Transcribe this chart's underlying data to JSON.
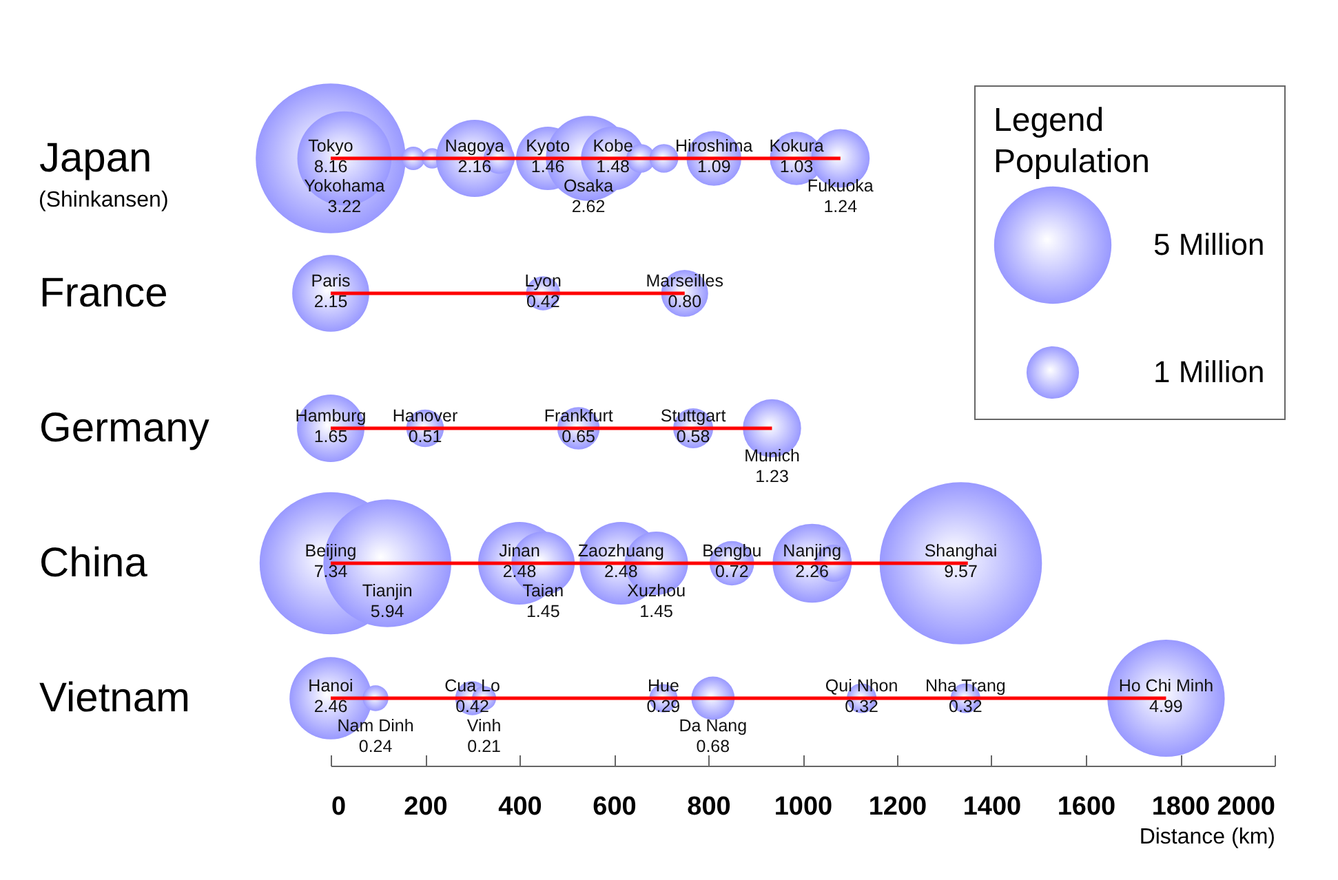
{
  "chart_data": {
    "type": "bubble",
    "orientation": "horizontal",
    "categories": [
      "Japan",
      "France",
      "Germany",
      "China",
      "Vietnam"
    ],
    "xlabel": "Distance (km)",
    "xlim": [
      0,
      2000
    ],
    "xticks": [
      0,
      200,
      400,
      600,
      800,
      1000,
      1200,
      1400,
      1600,
      1800,
      2000
    ],
    "legend_title": "Population",
    "size_legend": [
      {
        "value": 5,
        "label": "5 Million"
      },
      {
        "value": 1,
        "label": "1 Million"
      }
    ],
    "annotations": [
      "(Shinkansen)",
      "Legend"
    ],
    "grid": false,
    "series": [
      {
        "type": "line",
        "color": "#ff0000",
        "x": [
          "Japan",
          "Japan"
        ],
        "values": [
          0,
          1080
        ]
      },
      {
        "type": "line",
        "color": "#ff0000",
        "x": [
          "France",
          "France"
        ],
        "values": [
          0,
          750
        ]
      },
      {
        "type": "line",
        "color": "#ff0000",
        "x": [
          "Germany",
          "Germany"
        ],
        "values": [
          0,
          935
        ]
      },
      {
        "type": "line",
        "color": "#ff0000",
        "x": [
          "China",
          "China"
        ],
        "values": [
          0,
          1350
        ]
      },
      {
        "type": "line",
        "color": "#ff0000",
        "x": [
          "Vietnam",
          "Vietnam"
        ],
        "values": [
          0,
          1770
        ]
      },
      {
        "color": "#9999ff",
        "x": [
          "Japan",
          "Japan",
          "Japan",
          "Japan",
          "Japan",
          "Japan",
          "Japan",
          "Japan",
          "Japan",
          "Japan",
          "Japan",
          "Japan",
          "Japan",
          "Japan"
        ],
        "values": [
          0,
          29,
          175,
          215,
          305,
          357,
          460,
          546,
          598,
          657,
          706,
          812,
          987,
          1080
        ],
        "sizes": [
          8.16,
          3.22,
          0.2,
          0.15,
          2.16,
          0.35,
          1.46,
          2.62,
          1.48,
          0.3,
          0.3,
          1.09,
          1.03,
          1.24
        ],
        "value_labels": [
          "Tokyo\n8.16",
          "Yokohama\n3.22",
          null,
          null,
          "Nagoya\n2.16",
          null,
          "Kyoto\n1.46",
          "Osaka\n2.62",
          "Kobe\n1.48",
          null,
          null,
          "Hiroshima\n1.09",
          "Kokura\n1.03",
          "Fukuoka\n1.24"
        ]
      },
      {
        "color": "#9999ff",
        "x": [
          "France",
          "France",
          "France"
        ],
        "values": [
          0,
          450,
          750
        ],
        "sizes": [
          2.15,
          0.42,
          0.8
        ],
        "value_labels": [
          "Paris\n2.15",
          "Lyon\n0.42",
          "Marseilles\n0.80"
        ]
      },
      {
        "color": "#9999ff",
        "x": [
          "Germany",
          "Germany",
          "Germany",
          "Germany",
          "Germany"
        ],
        "values": [
          0,
          200,
          525,
          768,
          935
        ],
        "sizes": [
          1.65,
          0.51,
          0.65,
          0.58,
          1.23
        ],
        "value_labels": [
          "Hamburg\n1.65",
          "Hanover\n0.51",
          "Frankfurt\n0.65",
          "Stuttgart\n0.58",
          "Munich\n1.23"
        ]
      },
      {
        "color": "#9999ff",
        "x": [
          "China",
          "China",
          "China",
          "China",
          "China",
          "China",
          "China",
          "China",
          "China",
          "China"
        ],
        "values": [
          0,
          120,
          400,
          450,
          615,
          690,
          850,
          1020,
          1065,
          1335
        ],
        "sizes": [
          7.34,
          5.94,
          2.48,
          1.45,
          2.48,
          1.45,
          0.72,
          2.26,
          0.5,
          9.57
        ],
        "value_labels": [
          "Beijing\n7.34",
          "Tianjin\n5.94",
          "Jinan\n2.48",
          "Taian\n1.45",
          "Zaozhuang\n2.48",
          "Xuzhou\n1.45",
          "Bengbu\n0.72",
          "Nanjing\n2.26",
          null,
          "Shanghai\n9.57"
        ]
      },
      {
        "color": "#9999ff",
        "x": [
          "Vietnam",
          "Vietnam",
          "Vietnam",
          "Vietnam",
          "Vietnam",
          "Vietnam",
          "Vietnam",
          "Vietnam",
          "Vietnam"
        ],
        "values": [
          0,
          95,
          300,
          325,
          705,
          810,
          1125,
          1345,
          1770
        ],
        "sizes": [
          2.46,
          0.24,
          0.42,
          0.21,
          0.29,
          0.68,
          0.32,
          0.32,
          4.99
        ],
        "value_labels": [
          "Hanoi\n2.46",
          "Nam Dinh\n0.24",
          "Cua Lo\n0.42",
          "Vinh\n0.21",
          "Hue\n0.29",
          "Da Nang\n0.68",
          "Qui Nhon\n0.32",
          "Nha Trang\n0.32",
          "Ho Chi Minh\n4.99"
        ]
      }
    ]
  }
}
